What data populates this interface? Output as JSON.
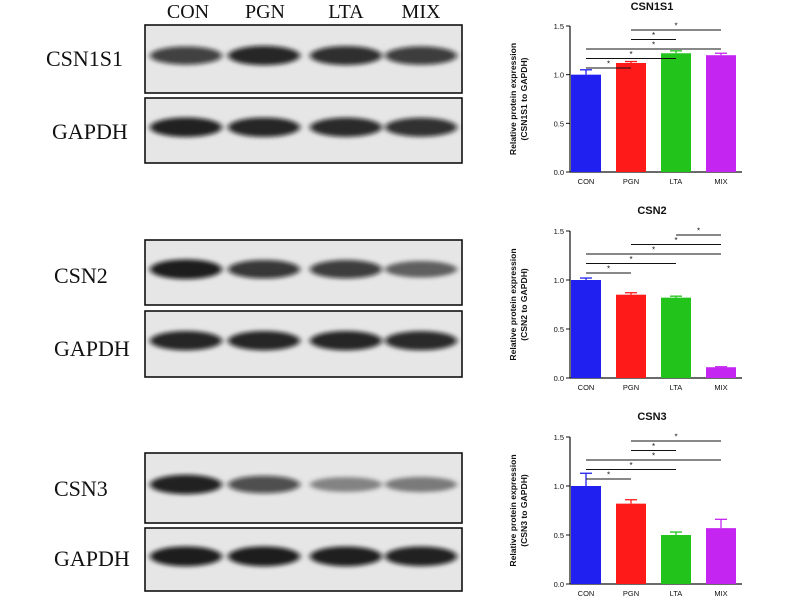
{
  "lanes": [
    "CON",
    "PGN",
    "LTA",
    "MIX"
  ],
  "blot_rows": [
    {
      "label": "CSN1S1",
      "intensity": [
        0.78,
        0.92,
        0.88,
        0.8
      ]
    },
    {
      "label": "GAPDH",
      "intensity": [
        0.95,
        0.92,
        0.9,
        0.86
      ]
    },
    {
      "label": "CSN2",
      "intensity": [
        0.98,
        0.82,
        0.8,
        0.55
      ]
    },
    {
      "label": "GAPDH",
      "intensity": [
        0.92,
        0.92,
        0.92,
        0.9
      ]
    },
    {
      "label": "CSN3",
      "intensity": [
        0.95,
        0.7,
        0.35,
        0.4
      ]
    },
    {
      "label": "GAPDH",
      "intensity": [
        0.98,
        0.98,
        0.96,
        0.95
      ]
    }
  ],
  "colors": {
    "CON": "#2020f0",
    "PGN": "#ff1a1a",
    "LTA": "#22c41c",
    "MIX": "#c425f0"
  },
  "chart_data": [
    {
      "type": "bar",
      "title": "CSN1S1",
      "categories": [
        "CON",
        "PGN",
        "LTA",
        "MIX"
      ],
      "values": [
        1.0,
        1.12,
        1.22,
        1.2
      ],
      "errors": [
        0.05,
        0.015,
        0.025,
        0.02
      ],
      "ylabel_line1": "Relative protein expression",
      "ylabel_line2": "(CSN1S1 to GAPDH)",
      "ylim": [
        0,
        1.5
      ],
      "yticks": [
        "0.0",
        "0.5",
        "1.0",
        "1.5"
      ],
      "significance": [
        {
          "from": 0,
          "to": 1,
          "mark": "*"
        },
        {
          "from": 0,
          "to": 2,
          "mark": "*"
        },
        {
          "from": 0,
          "to": 3,
          "mark": "*"
        },
        {
          "from": 1,
          "to": 2,
          "mark": "*"
        },
        {
          "from": 1,
          "to": 3,
          "mark": "*"
        }
      ]
    },
    {
      "type": "bar",
      "title": "CSN2",
      "categories": [
        "CON",
        "PGN",
        "LTA",
        "MIX"
      ],
      "values": [
        1.0,
        0.85,
        0.82,
        0.11
      ],
      "errors": [
        0.02,
        0.02,
        0.015,
        0.005
      ],
      "ylabel_line1": "Relative protein expression",
      "ylabel_line2": "(CSN2 to GAPDH)",
      "ylim": [
        0,
        1.5
      ],
      "yticks": [
        "0.0",
        "0.5",
        "1.0",
        "1.5"
      ],
      "significance": [
        {
          "from": 0,
          "to": 1,
          "mark": "*"
        },
        {
          "from": 0,
          "to": 2,
          "mark": "*"
        },
        {
          "from": 0,
          "to": 3,
          "mark": "*"
        },
        {
          "from": 1,
          "to": 3,
          "mark": "*"
        },
        {
          "from": 2,
          "to": 3,
          "mark": "*"
        }
      ]
    },
    {
      "type": "bar",
      "title": "CSN3",
      "categories": [
        "CON",
        "PGN",
        "LTA",
        "MIX"
      ],
      "values": [
        1.0,
        0.82,
        0.5,
        0.57
      ],
      "errors": [
        0.13,
        0.04,
        0.03,
        0.09
      ],
      "ylabel_line1": "Relative protein expression",
      "ylabel_line2": "(CSN3 to GAPDH)",
      "ylim": [
        0,
        1.5
      ],
      "yticks": [
        "0.0",
        "0.5",
        "1.0",
        "1.5"
      ],
      "significance": [
        {
          "from": 0,
          "to": 1,
          "mark": "*"
        },
        {
          "from": 0,
          "to": 2,
          "mark": "*"
        },
        {
          "from": 0,
          "to": 3,
          "mark": "*"
        },
        {
          "from": 1,
          "to": 2,
          "mark": "*"
        },
        {
          "from": 1,
          "to": 3,
          "mark": "*"
        }
      ]
    }
  ]
}
